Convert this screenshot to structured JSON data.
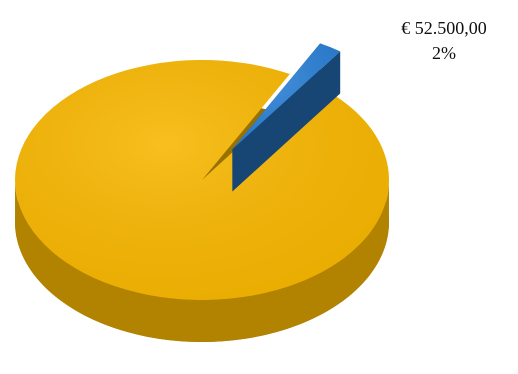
{
  "chart_data": {
    "type": "pie3d",
    "series": [
      {
        "values": [
          98,
          2
        ],
        "colors": [
          "#f7b600",
          "#2a7fd4"
        ],
        "value_labels": [
          null,
          "2%"
        ],
        "amounts": [
          2572500,
          52500
        ],
        "amount_labels": [
          null,
          "€ 52.500,00"
        ]
      }
    ]
  }
}
